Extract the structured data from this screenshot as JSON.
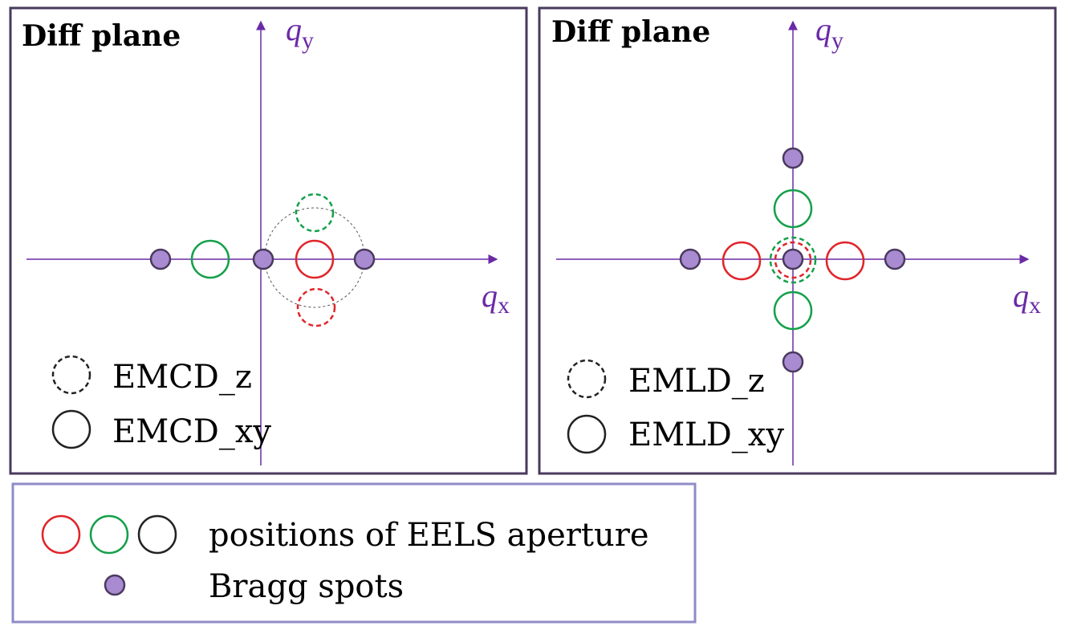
{
  "colors": {
    "axis": "#6a2aa6",
    "bragg_fill": "#a98bd1",
    "bragg_stroke": "#4a3a5e",
    "red": "#e0242a",
    "green": "#14a04a",
    "black": "#222222",
    "panel_border": "#4a3a5e",
    "legend_border": "#8f8bc8"
  },
  "panels": [
    {
      "title": "Diff plane",
      "axis_y_label": "q",
      "axis_y_sub": "y",
      "axis_x_label": "q",
      "axis_x_sub": "x",
      "legend": [
        {
          "style": "dashed",
          "label": "EMCD_z"
        },
        {
          "style": "solid",
          "label": "EMCD_xy"
        }
      ]
    },
    {
      "title": "Diff plane",
      "axis_y_label": "q",
      "axis_y_sub": "y",
      "axis_x_label": "q",
      "axis_x_sub": "x",
      "legend": [
        {
          "style": "dashed",
          "label": "EMLD_z"
        },
        {
          "style": "solid",
          "label": "EMLD_xy"
        }
      ]
    }
  ],
  "bottom_legend": {
    "aperture_label": "positions of EELS aperture",
    "aperture_icons": [
      "red-aperture-icon",
      "green-aperture-icon",
      "black-aperture-icon"
    ],
    "bragg_label": "Bragg spots",
    "bragg_icon": "bragg-spot-icon"
  }
}
